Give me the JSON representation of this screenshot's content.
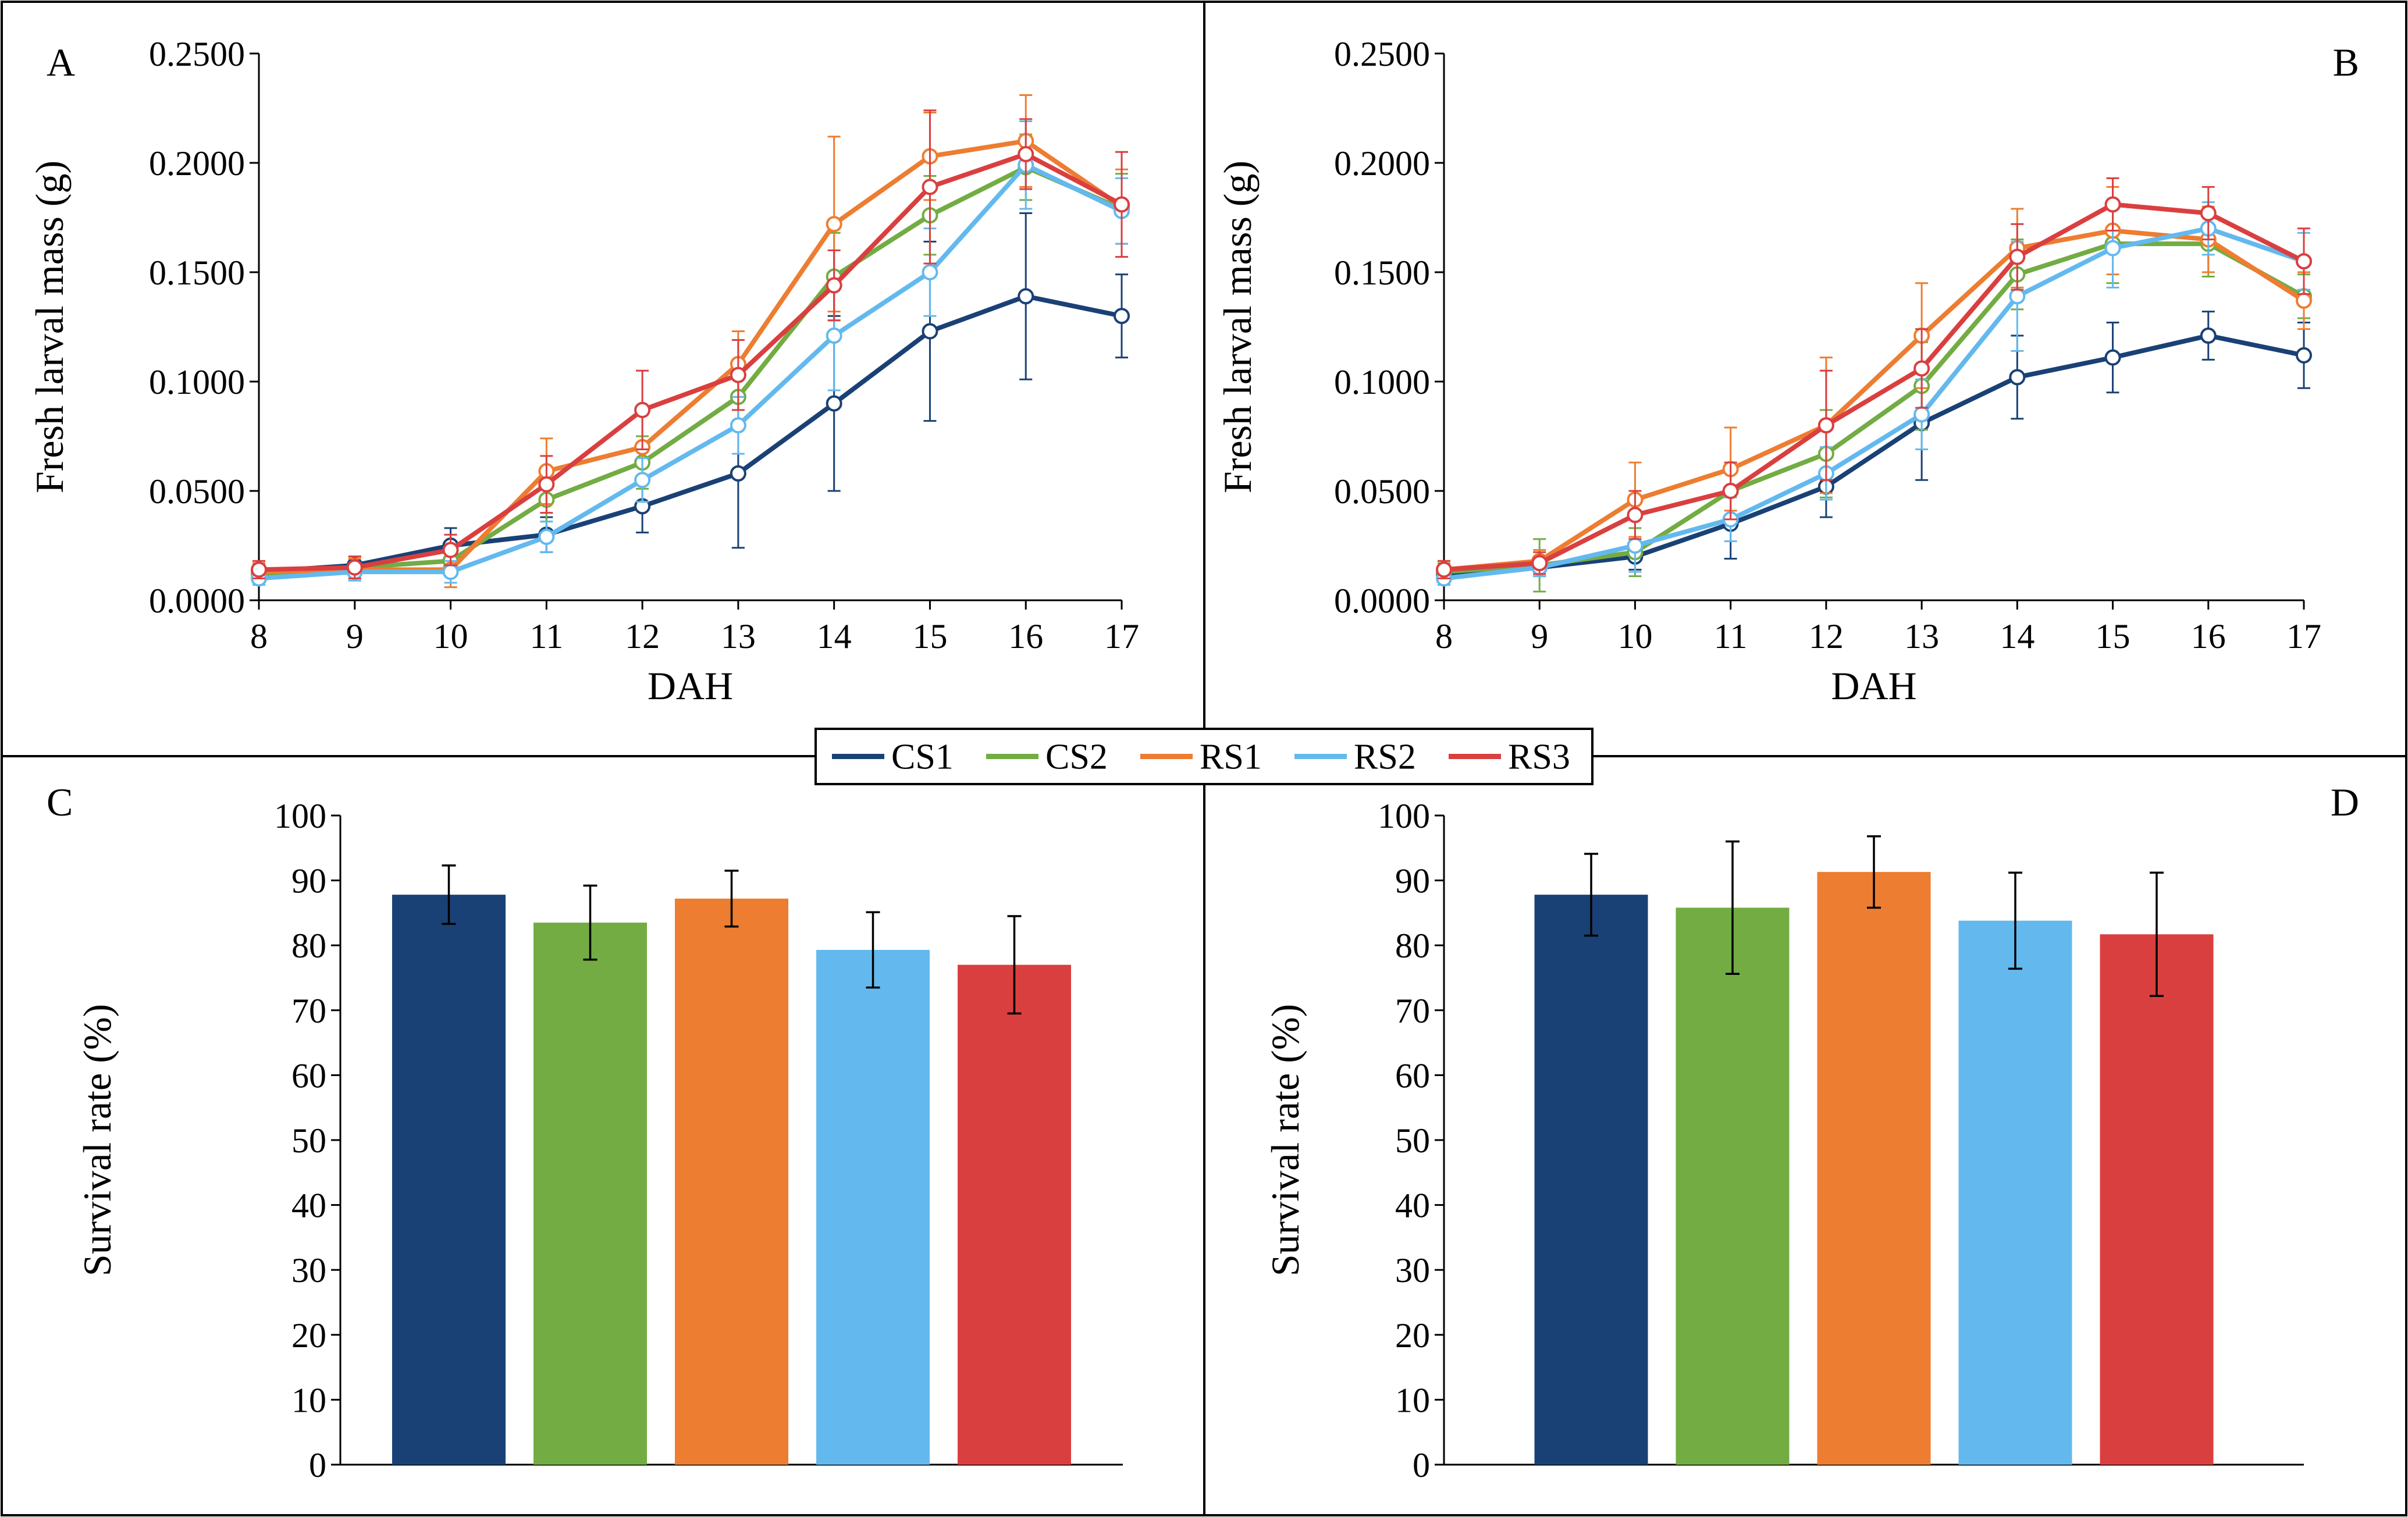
{
  "colors": {
    "CS1": "#1a4175",
    "CS2": "#72ac43",
    "RS1": "#ed7d31",
    "RS2": "#63b9ee",
    "RS3": "#da3f3f"
  },
  "legend": [
    "CS1",
    "CS2",
    "RS1",
    "RS2",
    "RS3"
  ],
  "chart_data": [
    {
      "panel": "A",
      "type": "line",
      "ylabel": "Fresh larval mass (g)",
      "xlabel": "DAH",
      "x": [
        8,
        9,
        10,
        11,
        12,
        13,
        14,
        15,
        16,
        17
      ],
      "ylim": [
        0,
        0.25
      ],
      "yticks": [
        "0.0000",
        "0.0500",
        "0.1000",
        "0.1500",
        "0.2000",
        "0.2500"
      ],
      "series": [
        {
          "name": "CS1",
          "values": [
            0.013,
            0.016,
            0.025,
            0.03,
            0.043,
            0.058,
            0.09,
            0.123,
            0.139,
            0.13
          ],
          "errors": [
            0.004,
            0.004,
            0.008,
            0.008,
            0.012,
            0.034,
            0.04,
            0.041,
            0.038,
            0.019
          ]
        },
        {
          "name": "CS2",
          "values": [
            0.012,
            0.015,
            0.018,
            0.046,
            0.063,
            0.093,
            0.148,
            0.176,
            0.198,
            0.179
          ],
          "errors": [
            0.004,
            0.005,
            0.006,
            0.01,
            0.012,
            0.015,
            0.02,
            0.018,
            0.015,
            0.016
          ]
        },
        {
          "name": "RS1",
          "values": [
            0.013,
            0.014,
            0.014,
            0.059,
            0.07,
            0.108,
            0.172,
            0.203,
            0.21,
            0.18
          ],
          "errors": [
            0.004,
            0.005,
            0.008,
            0.015,
            0.016,
            0.015,
            0.04,
            0.02,
            0.021,
            0.017
          ]
        },
        {
          "name": "RS2",
          "values": [
            0.01,
            0.013,
            0.013,
            0.029,
            0.055,
            0.08,
            0.121,
            0.15,
            0.199,
            0.178
          ],
          "errors": [
            0.003,
            0.004,
            0.005,
            0.007,
            0.01,
            0.013,
            0.025,
            0.02,
            0.02,
            0.015
          ]
        },
        {
          "name": "RS3",
          "values": [
            0.014,
            0.015,
            0.023,
            0.053,
            0.087,
            0.103,
            0.144,
            0.189,
            0.204,
            0.181
          ],
          "errors": [
            0.004,
            0.005,
            0.007,
            0.013,
            0.018,
            0.016,
            0.016,
            0.035,
            0.016,
            0.024
          ]
        }
      ]
    },
    {
      "panel": "B",
      "type": "line",
      "ylabel": "Fresh larval mass (g)",
      "xlabel": "DAH",
      "x": [
        8,
        9,
        10,
        11,
        12,
        13,
        14,
        15,
        16,
        17
      ],
      "ylim": [
        0,
        0.25
      ],
      "yticks": [
        "0.0000",
        "0.0500",
        "0.1000",
        "0.1500",
        "0.2000",
        "0.2500"
      ],
      "series": [
        {
          "name": "CS1",
          "values": [
            0.012,
            0.015,
            0.02,
            0.035,
            0.052,
            0.081,
            0.102,
            0.111,
            0.121,
            0.112
          ],
          "errors": [
            0.004,
            0.004,
            0.006,
            0.016,
            0.014,
            0.026,
            0.019,
            0.016,
            0.011,
            0.015
          ]
        },
        {
          "name": "CS2",
          "values": [
            0.013,
            0.016,
            0.022,
            0.05,
            0.067,
            0.098,
            0.149,
            0.163,
            0.163,
            0.139
          ],
          "errors": [
            0.004,
            0.012,
            0.011,
            0.012,
            0.02,
            0.02,
            0.016,
            0.018,
            0.015,
            0.01
          ]
        },
        {
          "name": "RS1",
          "values": [
            0.014,
            0.018,
            0.046,
            0.06,
            0.08,
            0.121,
            0.161,
            0.169,
            0.165,
            0.137
          ],
          "errors": [
            0.004,
            0.005,
            0.017,
            0.019,
            0.031,
            0.024,
            0.018,
            0.02,
            0.015,
            0.013
          ]
        },
        {
          "name": "RS2",
          "values": [
            0.01,
            0.015,
            0.025,
            0.037,
            0.058,
            0.085,
            0.139,
            0.161,
            0.17,
            0.155
          ],
          "errors": [
            0.003,
            0.004,
            0.012,
            0.01,
            0.012,
            0.016,
            0.025,
            0.018,
            0.012,
            0.013
          ]
        },
        {
          "name": "RS3",
          "values": [
            0.014,
            0.017,
            0.039,
            0.05,
            0.08,
            0.106,
            0.157,
            0.181,
            0.177,
            0.155
          ],
          "errors": [
            0.004,
            0.005,
            0.011,
            0.013,
            0.025,
            0.018,
            0.015,
            0.012,
            0.012,
            0.015
          ]
        }
      ]
    },
    {
      "panel": "C",
      "type": "bar",
      "ylabel": "Survival rate (%)",
      "categories": [
        "CS1",
        "CS2",
        "RS1",
        "RS2",
        "RS3"
      ],
      "values": [
        87.8,
        83.5,
        87.2,
        79.3,
        77.0
      ],
      "errors": [
        4.5,
        5.7,
        4.3,
        5.8,
        7.5
      ],
      "ylim": [
        0,
        100
      ],
      "yticks": [
        "0",
        "10",
        "20",
        "30",
        "40",
        "50",
        "60",
        "70",
        "80",
        "90",
        "100"
      ]
    },
    {
      "panel": "D",
      "type": "bar",
      "ylabel": "Survival rate (%)",
      "categories": [
        "CS1",
        "CS2",
        "RS1",
        "RS2",
        "RS3"
      ],
      "values": [
        87.8,
        85.8,
        91.3,
        83.8,
        81.7
      ],
      "errors": [
        6.3,
        10.2,
        5.5,
        7.4,
        9.5
      ],
      "ylim": [
        0,
        100
      ],
      "yticks": [
        "0",
        "10",
        "20",
        "30",
        "40",
        "50",
        "60",
        "70",
        "80",
        "90",
        "100"
      ]
    }
  ]
}
